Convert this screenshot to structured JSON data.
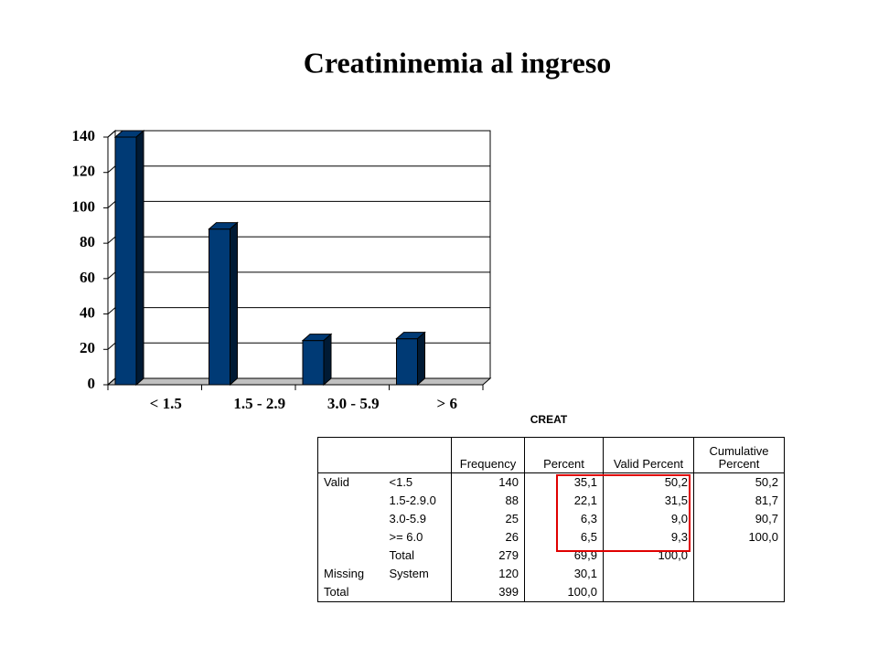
{
  "chart_data": {
    "type": "bar",
    "title": "Creatininemia  al ingreso",
    "categories": [
      "< 1.5",
      "1.5 - 2.9",
      "3.0 - 5.9",
      "> 6"
    ],
    "values": [
      140,
      88,
      25,
      26
    ],
    "color": "#003a75",
    "ylim": [
      0,
      140
    ],
    "yticks": [
      0,
      20,
      40,
      60,
      80,
      100,
      120,
      140
    ],
    "grid": true
  },
  "table": {
    "title": "CREAT",
    "header": [
      null,
      null,
      "Frequency",
      "Percent",
      "Valid Percent",
      "Cumulative Percent"
    ],
    "rows": [
      [
        "Valid",
        "<1.5",
        "140",
        "35,1",
        "50,2",
        "50,2"
      ],
      [
        null,
        "1.5-2.9.0",
        "88",
        "22,1",
        "31,5",
        "81,7"
      ],
      [
        null,
        "3.0-5.9",
        "25",
        "6,3",
        "9,0",
        "90,7"
      ],
      [
        null,
        ">= 6.0",
        "26",
        "6,5",
        "9,3",
        "100,0"
      ],
      [
        null,
        "Total",
        "279",
        "69,9",
        "100,0",
        null
      ],
      [
        "Missing",
        "System",
        "120",
        "30,1",
        null,
        null
      ],
      [
        "Total",
        null,
        "399",
        "100,0",
        null,
        null
      ]
    ]
  }
}
